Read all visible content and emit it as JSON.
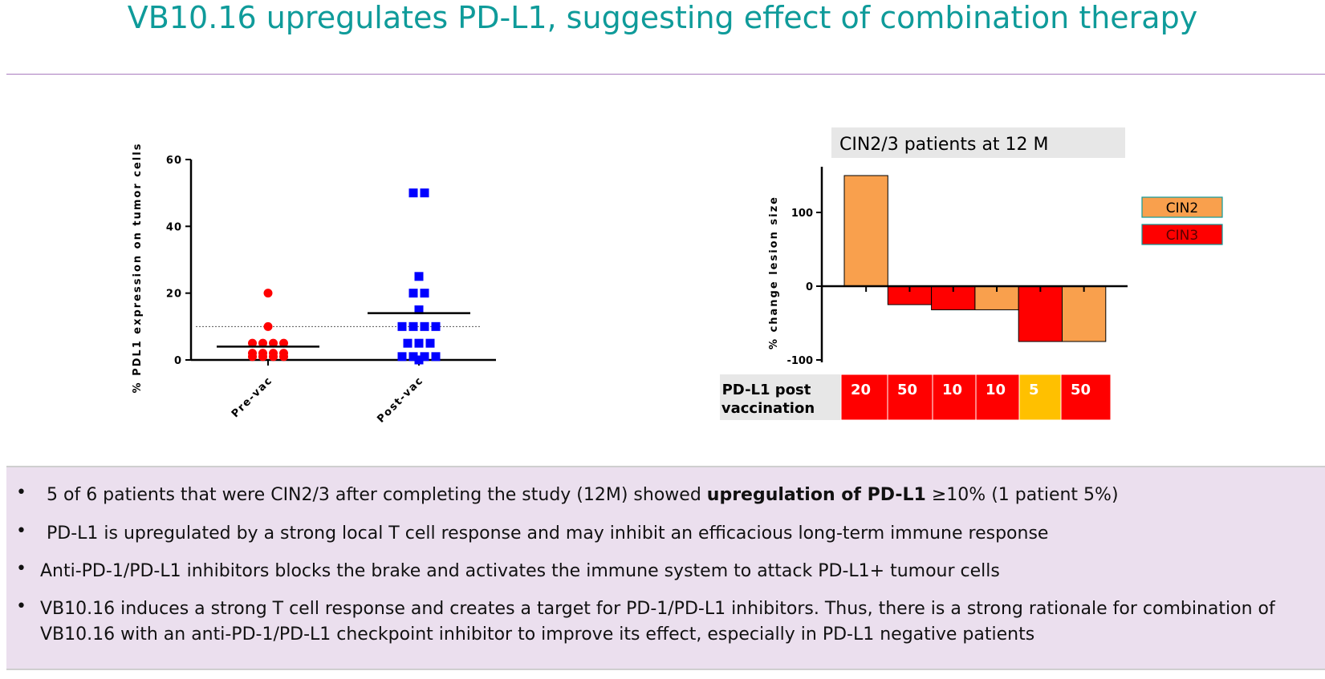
{
  "title": "VB10.16 upregulates PD-L1, suggesting effect of combination therapy",
  "chart_data": [
    {
      "type": "scatter",
      "ylabel": "% PDL1 expression on tumor cells",
      "ylim": [
        0,
        60
      ],
      "yticks": [
        "0",
        "20",
        "40",
        "60"
      ],
      "categories": [
        "Pre-vac",
        "Post-vac"
      ],
      "threshold_line": 10,
      "series": [
        {
          "category": "Pre-vac",
          "marker": "circle",
          "color": "#ff0000",
          "mean": 4,
          "values": [
            20,
            10,
            5,
            5,
            5,
            5,
            2,
            2,
            2,
            2,
            1,
            1,
            1,
            1
          ]
        },
        {
          "category": "Post-vac",
          "marker": "square",
          "color": "#0000ff",
          "mean": 14,
          "values": [
            50,
            50,
            25,
            20,
            20,
            15,
            10,
            10,
            10,
            10,
            5,
            5,
            5,
            1,
            1,
            1,
            1,
            0
          ]
        }
      ]
    },
    {
      "type": "bar",
      "title": "CIN2/3 patients at 12 M",
      "ylabel": "% change lesion size",
      "ylim": [
        -100,
        150
      ],
      "yticks": [
        "-100",
        "0",
        "100"
      ],
      "values": [
        150,
        -25,
        -32,
        -32,
        -75,
        -75
      ],
      "groups": [
        "CIN2",
        "CIN3",
        "CIN3",
        "CIN2",
        "CIN3",
        "CIN2"
      ],
      "legend": [
        {
          "label": "CIN2",
          "color": "#f9a04d"
        },
        {
          "label": "CIN3",
          "color": "#ff0000"
        }
      ],
      "table": {
        "label_line1": "PD-L1 post",
        "label_line2": "vaccination",
        "values": [
          "20",
          "50",
          "10",
          "10",
          "5",
          "50"
        ],
        "colors": [
          "#ff0000",
          "#ff0000",
          "#ff0000",
          "#ff0000",
          "#ffc000",
          "#ff0000"
        ]
      }
    }
  ],
  "bullets": [
    {
      "pre": "5 of 6 patients that were CIN2/3 after completing the study (12M) showed ",
      "bold": "upregulation of PD-L1",
      "post": " ≥10% (1 patient 5%)"
    },
    {
      "pre": "PD-L1 is upregulated by a strong local T cell response and may inhibit an efficacious long-term immune response",
      "bold": "",
      "post": ""
    },
    {
      "pre": "Anti-PD-1/PD-L1 inhibitors blocks the brake and activates the immune system to attack PD-L1+ tumour cells",
      "bold": "",
      "post": ""
    },
    {
      "pre": "VB10.16 induces a strong T cell response and creates a target for PD-1/PD-L1 inhibitors. Thus, there is a strong rationale for combination of VB10.16 with an anti-PD-1/PD-L1 checkpoint inhibitor to improve its effect, especially in PD-L1 negative patients",
      "bold": "",
      "post": ""
    }
  ]
}
